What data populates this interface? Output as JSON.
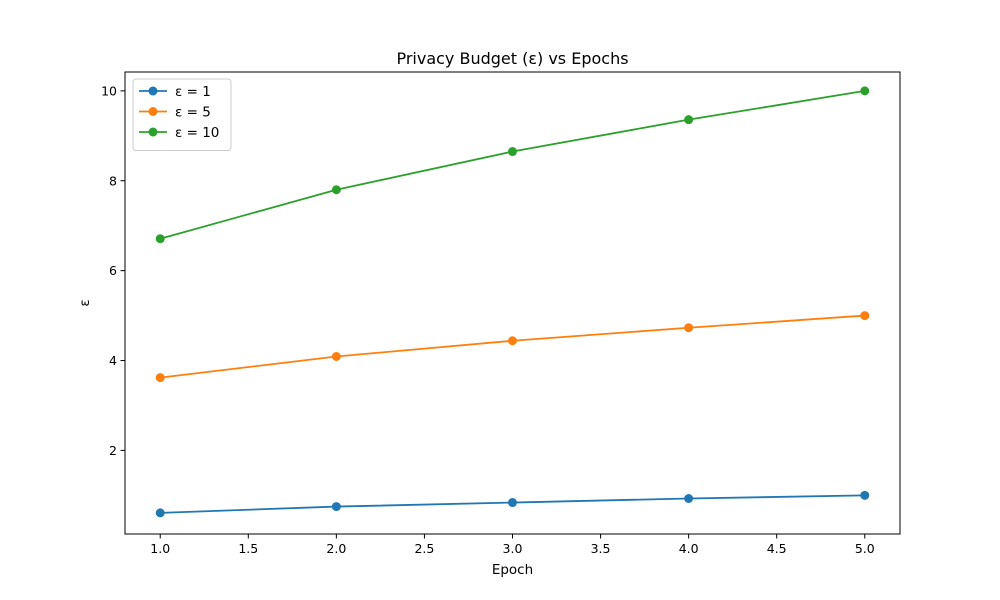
{
  "chart_data": {
    "type": "line",
    "title": "Privacy Budget (ε) vs Epochs",
    "xlabel": "Epoch",
    "ylabel": "ε",
    "xlim": [
      0.8,
      5.2
    ],
    "ylim": [
      0.14,
      10.42
    ],
    "xticks": [
      1.0,
      1.5,
      2.0,
      2.5,
      3.0,
      3.5,
      4.0,
      4.5,
      5.0
    ],
    "xtick_labels": [
      "1.0",
      "1.5",
      "2.0",
      "2.5",
      "3.0",
      "3.5",
      "4.0",
      "4.5",
      "5.0"
    ],
    "yticks": [
      2,
      4,
      6,
      8,
      10
    ],
    "ytick_labels": [
      "2",
      "4",
      "6",
      "8",
      "10"
    ],
    "grid": false,
    "legend_position": "top-left",
    "x": [
      1,
      2,
      3,
      4,
      5
    ],
    "series": [
      {
        "name": "ε = 1",
        "color": "#1f77b4",
        "values": [
          0.61,
          0.75,
          0.84,
          0.93,
          1.0
        ]
      },
      {
        "name": "ε = 5",
        "color": "#ff7f0e",
        "values": [
          3.62,
          4.09,
          4.44,
          4.73,
          5.0
        ]
      },
      {
        "name": "ε = 10",
        "color": "#2ca02c",
        "values": [
          6.71,
          7.8,
          8.65,
          9.36,
          10.0
        ]
      }
    ]
  }
}
